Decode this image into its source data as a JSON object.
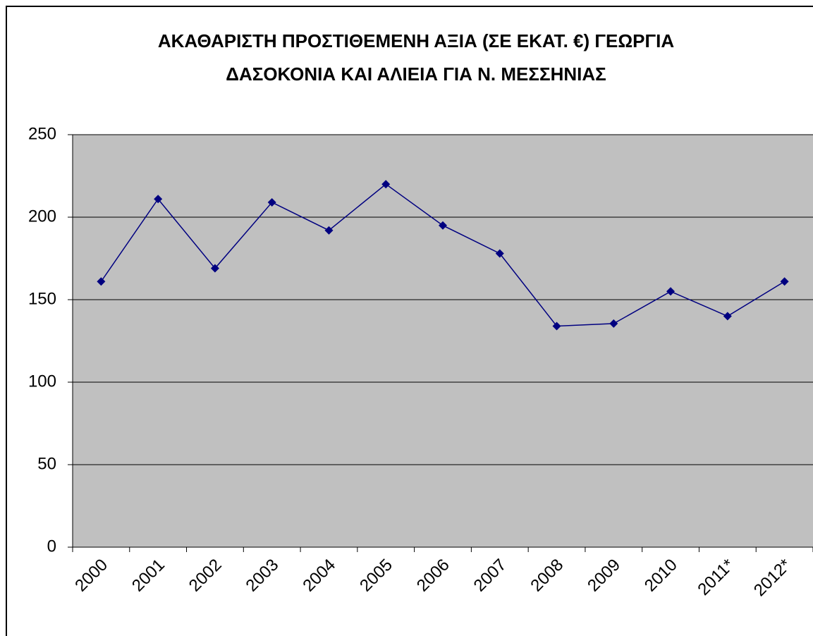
{
  "chart_data": {
    "type": "line",
    "title": [
      "ΑΚΑΘΑΡΙΣΤΗ ΠΡΟΣΤΙΘΕΜΕΝΗ ΑΞΙΑ (ΣΕ ΕΚΑΤ. €) ΓΕΩΡΓΙΑ",
      "ΔΑΣΟΚΟΝΙΑ ΚΑΙ ΑΛΙΕΙΑ ΓΙΑ Ν. ΜΕΣΣΗΝΙΑΣ"
    ],
    "categories": [
      "2000",
      "2001",
      "2002",
      "2003",
      "2004",
      "2005",
      "2006",
      "2007",
      "2008",
      "2009",
      "2010",
      "2011*",
      "2012*"
    ],
    "values": [
      161,
      211,
      169,
      209,
      192,
      220,
      195,
      178,
      134,
      135.5,
      155,
      140,
      161
    ],
    "color": "#000080",
    "ylim": [
      0,
      250
    ],
    "yticks": [
      0,
      50,
      100,
      150,
      200,
      250
    ],
    "grid": true
  }
}
